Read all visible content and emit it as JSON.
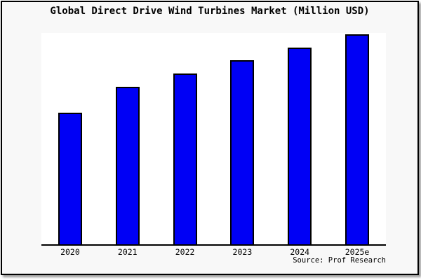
{
  "header": {
    "title": "Global Direct Drive Wind Turbines Market (Million USD)"
  },
  "footer": {
    "source_label": "Source: Prof Research"
  },
  "colors": {
    "frame_bg": "#f8f8f8",
    "frame_border": "#000000",
    "plot_bg": "#ffffff",
    "axis": "#000000",
    "text": "#000000",
    "shadow": "#999999",
    "bar_fill": "#0000f5",
    "bar_border": "#000000"
  },
  "chart_data": {
    "type": "bar",
    "title": "Global Direct Drive Wind Turbines Market (Million USD)",
    "categories": [
      "2020",
      "2021",
      "2022",
      "2023",
      "2024",
      "2025e"
    ],
    "values": [
      62.6,
      75.0,
      81.6,
      87.8,
      93.8,
      100.0
    ],
    "value_notes": "no y-axis ticks or gridlines shown; values estimated from bar heights, normalized to 2025e = 100",
    "xlabel": "",
    "ylabel": "",
    "ylim": [
      0,
      100.8
    ],
    "grid": false,
    "legend": false,
    "bar_color": "#0000f5",
    "source": "Source: Prof Research"
  }
}
